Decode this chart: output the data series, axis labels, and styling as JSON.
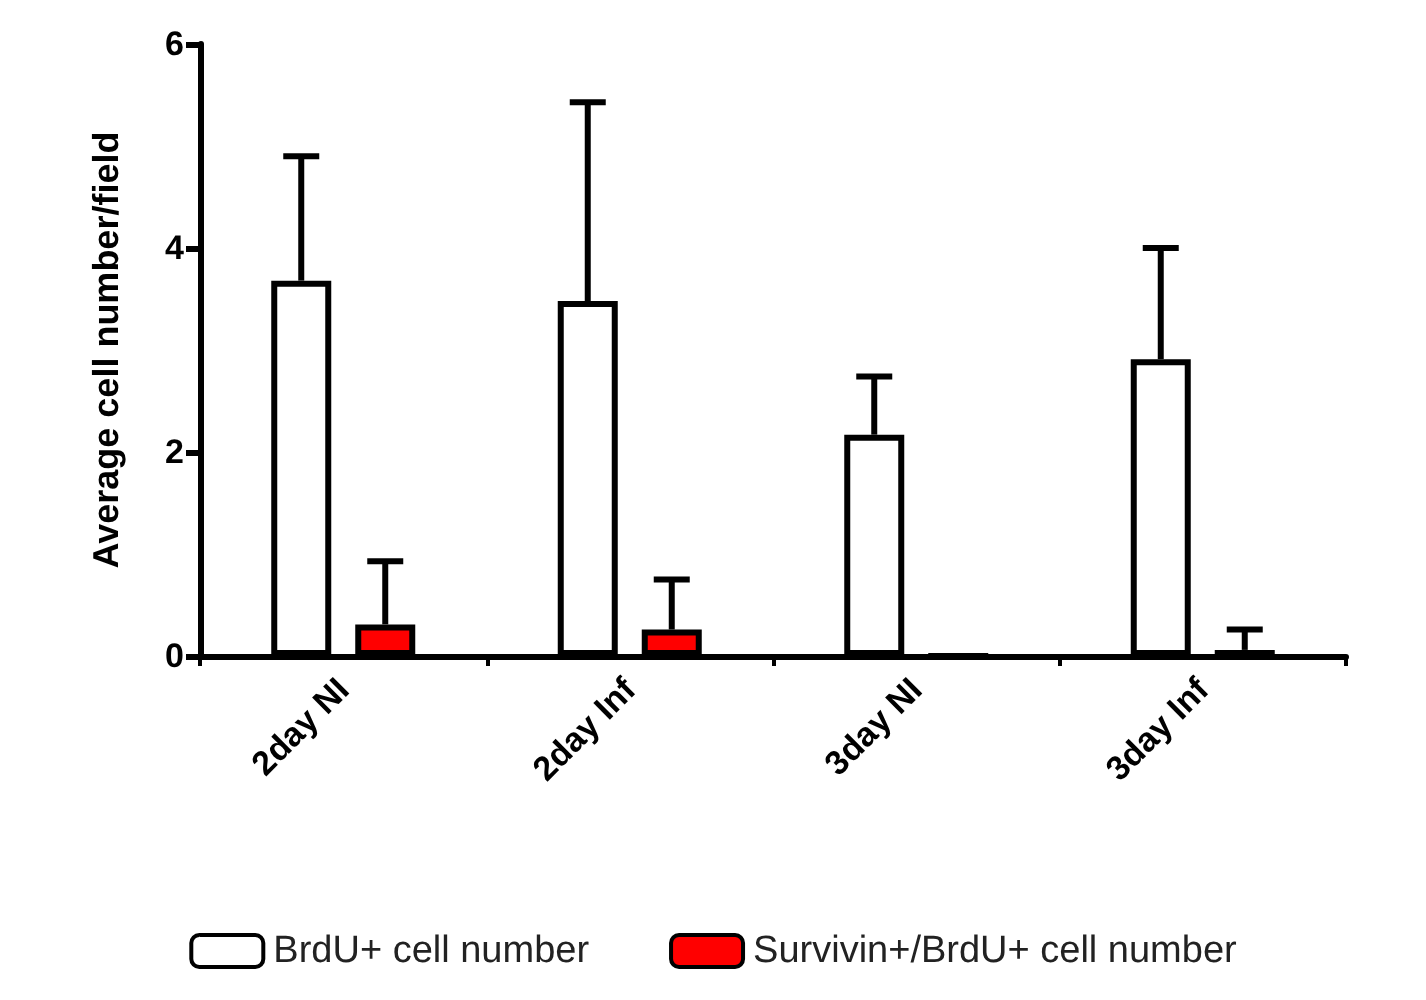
{
  "chart_data": {
    "type": "bar",
    "ylabel": "Average cell number/field",
    "categories": [
      "2day NI",
      "2day Inf",
      "3day NI",
      "3day Inf"
    ],
    "series": [
      {
        "name": "BrdU+ cell number",
        "color": "#ffffff",
        "values": [
          3.68,
          3.48,
          2.17,
          2.91
        ],
        "errors": [
          [
            3.68,
            4.9
          ],
          [
            3.48,
            5.43
          ],
          [
            2.17,
            2.74
          ],
          [
            2.91,
            4.0
          ]
        ]
      },
      {
        "name": "Survivin+/BrdU+ cell number",
        "color": "#ff0000",
        "values": [
          0.31,
          0.26,
          0,
          0.06
        ],
        "errors": [
          [
            0.31,
            0.93
          ],
          [
            0.26,
            0.75
          ],
          null,
          [
            0.06,
            0.26
          ]
        ]
      }
    ],
    "ylim": [
      0,
      6
    ],
    "yticks": [
      0,
      2,
      4,
      6
    ],
    "grid": false,
    "legend": "bottom"
  }
}
